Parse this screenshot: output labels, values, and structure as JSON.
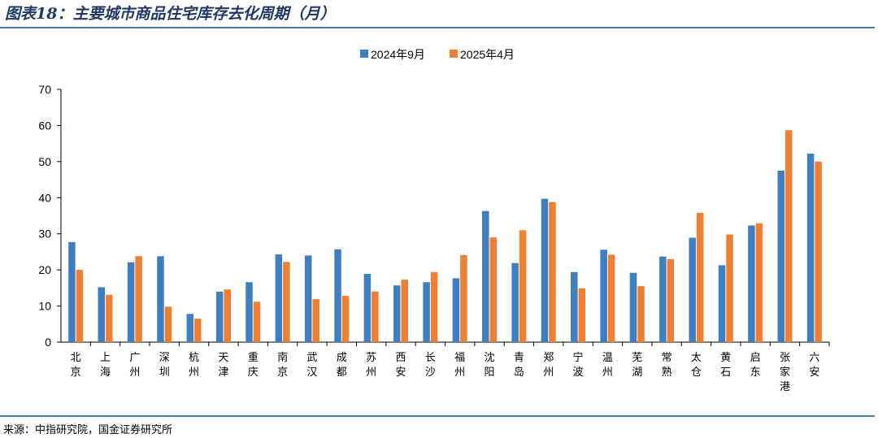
{
  "title": "图表18：主要城市商品住宅库存去化周期（月）",
  "source": "来源：中指研究院，国金证券研究所",
  "colors": {
    "series1": "#3f7fc1",
    "series2": "#ee7f33",
    "rule": "#4a78a8"
  },
  "chart_data": {
    "type": "bar",
    "categories": [
      "北京",
      "上海",
      "广州",
      "深圳",
      "杭州",
      "天津",
      "重庆",
      "南京",
      "武汉",
      "成都",
      "苏州",
      "西安",
      "长沙",
      "福州",
      "沈阳",
      "青岛",
      "郑州",
      "宁波",
      "温州",
      "芜湖",
      "常熟",
      "太仓",
      "黄石",
      "启东",
      "张家港",
      "六安"
    ],
    "series": [
      {
        "name": "2024年9月",
        "values": [
          27.7,
          15.2,
          22.1,
          23.8,
          7.8,
          14.0,
          16.6,
          24.3,
          24.0,
          25.7,
          18.9,
          15.7,
          16.6,
          17.7,
          36.3,
          21.9,
          39.7,
          19.4,
          25.6,
          19.2,
          23.7,
          28.9,
          21.3,
          32.3,
          47.5,
          52.2
        ]
      },
      {
        "name": "2025年4月",
        "values": [
          20.0,
          13.1,
          23.8,
          9.8,
          6.5,
          14.6,
          11.2,
          22.2,
          11.9,
          12.8,
          14.0,
          17.3,
          19.4,
          24.1,
          29.0,
          31.0,
          38.8,
          14.9,
          24.2,
          15.5,
          23.0,
          35.8,
          29.8,
          32.9,
          58.7,
          50.0
        ]
      }
    ],
    "ylim": [
      0,
      70
    ],
    "yticks": [
      0,
      10,
      20,
      30,
      40,
      50,
      60,
      70
    ],
    "legend_position": "top-center",
    "grid": false
  }
}
